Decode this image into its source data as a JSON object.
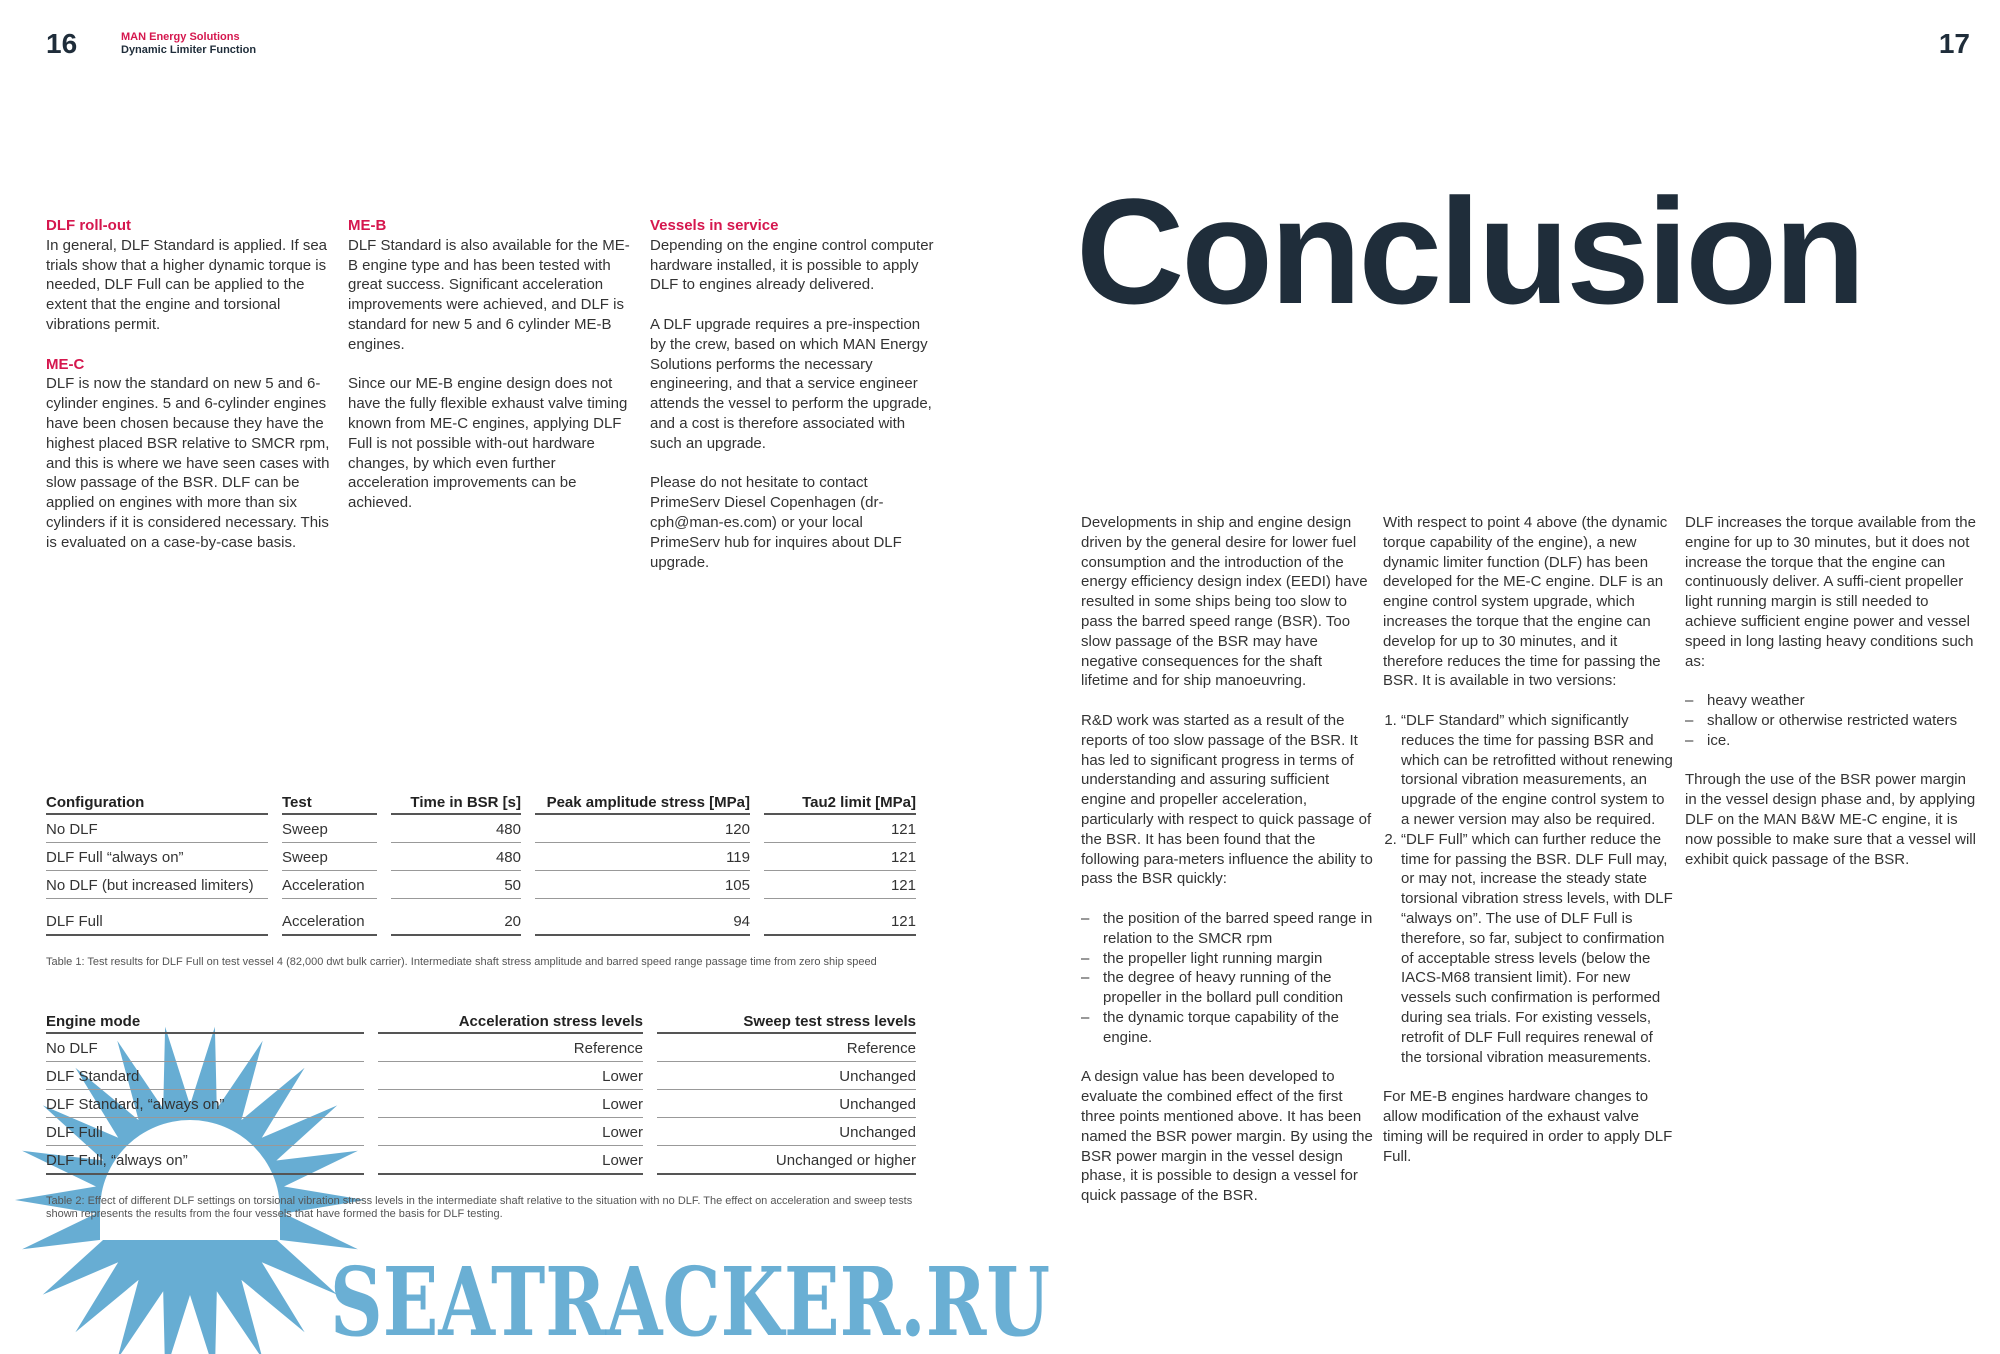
{
  "header": {
    "left_page": "16",
    "right_page": "17",
    "brand": "MAN Energy Solutions",
    "doc_title": "Dynamic Limiter Function"
  },
  "left_columns": {
    "dlf_rollout": {
      "heading": "DLF roll-out",
      "text": "In general, DLF Standard is applied. If sea trials show that a higher dynamic torque is needed, DLF Full can be applied to the extent that the engine and torsional vibrations permit."
    },
    "me_c": {
      "heading": "ME-C",
      "text": "DLF is now the standard on new 5 and 6-cylinder engines. 5 and 6-cylinder engines have been chosen because they have the highest placed BSR relative to SMCR rpm, and this is where we have seen cases with slow passage of the BSR. DLF can be applied on engines with more than six cylinders if it is considered necessary. This is evaluated on a case-by-case basis."
    },
    "me_b": {
      "heading": "ME-B",
      "p1": "DLF Standard is also available for the ME-B engine type and has been tested with great success. Significant acceleration improvements were achieved, and DLF is standard for new 5 and 6 cylinder ME-B engines.",
      "p2": "Since our ME-B engine design does not have the fully flexible exhaust valve timing known from ME-C engines, applying DLF Full is not possible with-out hardware changes, by which even further acceleration improvements can be achieved."
    },
    "vessels": {
      "heading": "Vessels in service",
      "p1": "Depending on the engine control computer hardware installed, it is possible to apply DLF to engines already delivered.",
      "p2": "A DLF upgrade requires a pre-inspection by the crew, based on which MAN Energy Solutions performs the necessary engineering, and that a service engineer attends the vessel to perform the upgrade, and a cost is therefore associated with such an upgrade.",
      "p3": "Please do not hesitate to contact PrimeServ Diesel Copenhagen (dr-cph@man-es.com) or your local PrimeServ hub for inquires about DLF upgrade."
    }
  },
  "table1": {
    "headers": [
      "Configuration",
      "Test",
      "Time in BSR [s]",
      "Peak amplitude stress [MPa]",
      "Tau2 limit [MPa]"
    ],
    "rows": [
      [
        "No DLF",
        "Sweep",
        "480",
        "120",
        "121"
      ],
      [
        "DLF Full “always on”",
        "Sweep",
        "480",
        "119",
        "121"
      ],
      [
        "No DLF (but increased limiters)",
        "Acceleration",
        "50",
        "105",
        "121"
      ],
      [
        "DLF Full",
        "Acceleration",
        "20",
        "94",
        "121"
      ]
    ],
    "caption": "Table 1: Test results for DLF Full on test vessel 4 (82,000 dwt bulk carrier). Intermediate shaft stress amplitude and barred speed range passage time from zero ship speed"
  },
  "table2": {
    "headers": [
      "Engine mode",
      "Acceleration stress levels",
      "Sweep test stress levels"
    ],
    "rows": [
      [
        "No DLF",
        "Reference",
        "Reference"
      ],
      [
        "DLF Standard",
        "Lower",
        "Unchanged"
      ],
      [
        "DLF Standard, “always on”",
        "Lower",
        "Unchanged"
      ],
      [
        "DLF Full",
        "Lower",
        "Unchanged"
      ],
      [
        "DLF Full, “always on”",
        "Lower",
        "Unchanged or higher"
      ]
    ],
    "caption": "Table 2: Effect of different DLF settings on torsional vibration stress levels in the intermediate shaft relative to the situation with no DLF. The effect on acceleration and sweep tests shown represents the results from the four vessels that have formed the basis for DLF testing."
  },
  "conclusion": {
    "title": "Conclusion",
    "c1": {
      "p1": "Developments in ship and engine design driven by the general desire for lower fuel consumption and the introduction of the energy efficiency design index (EEDI) have resulted in some ships being too slow to pass the barred speed range (BSR). Too slow passage of the BSR may have negative consequences for the shaft lifetime and for ship manoeuvring.",
      "p2": "R&D work was started as a result of the reports of too slow passage of the BSR. It has led to significant progress in terms of understanding and assuring sufficient engine and propeller acceleration, particularly with respect to quick passage of the BSR. It has been found that the following para-meters influence the ability to pass the BSR quickly:",
      "bullets": [
        "the position of the barred speed range in relation to the SMCR rpm",
        "the propeller light running margin",
        "the degree of heavy running of the propeller in the bollard pull condition",
        "the dynamic torque capability of the engine."
      ],
      "p3": "A design value has been developed to evaluate the combined effect of the first three points mentioned above. It has been named the BSR power margin. By using the BSR power margin in the vessel design phase, it is possible to design a vessel for quick passage of the BSR."
    },
    "c2": {
      "p1": "With respect to point 4 above (the dynamic torque capability of the engine), a new dynamic limiter function (DLF) has been developed for the ME-C engine. DLF is an engine control system upgrade, which increases the torque that the engine can develop for up to 30 minutes, and it therefore reduces the time for passing the BSR. It is available in two versions:",
      "items": [
        "“DLF Standard” which significantly reduces the time for passing BSR and which can be retrofitted without renewing torsional vibration measurements, an upgrade of the engine control system to a newer version may also be required.",
        "“DLF Full” which can further reduce the time for passing the BSR. DLF Full may, or may not, increase the steady state torsional vibration stress levels, with DLF “always on”. The use of DLF Full is therefore, so far, subject to confirmation of acceptable stress levels (below the IACS-M68 transient limit). For new vessels such confirmation is performed during sea trials. For existing vessels, retrofit of DLF Full requires renewal of the torsional vibration measurements."
      ],
      "p2": "For ME-B engines hardware changes to allow modification of the exhaust valve timing will be required in order to apply DLF Full."
    },
    "c3": {
      "p1": "DLF increases the torque available from the engine for up to 30 minutes, but it does not increase the torque that the engine can continuously deliver. A suffi-cient propeller light running margin is still needed to achieve sufficient engine power and vessel speed in long lasting heavy conditions such as:",
      "bullets": [
        "heavy weather",
        "shallow or otherwise restricted waters",
        "ice."
      ],
      "p2": "Through the use of the BSR power margin in the vessel design phase and, by applying DLF on the MAN B&W ME-C engine, it is now possible to make sure that a vessel will exhibit quick passage of the BSR."
    }
  },
  "watermark": {
    "text": "SEATRACKER.RU",
    "color": "#5aa6cf"
  },
  "colors": {
    "accent": "#d5174e",
    "title": "#1f2d3a"
  }
}
